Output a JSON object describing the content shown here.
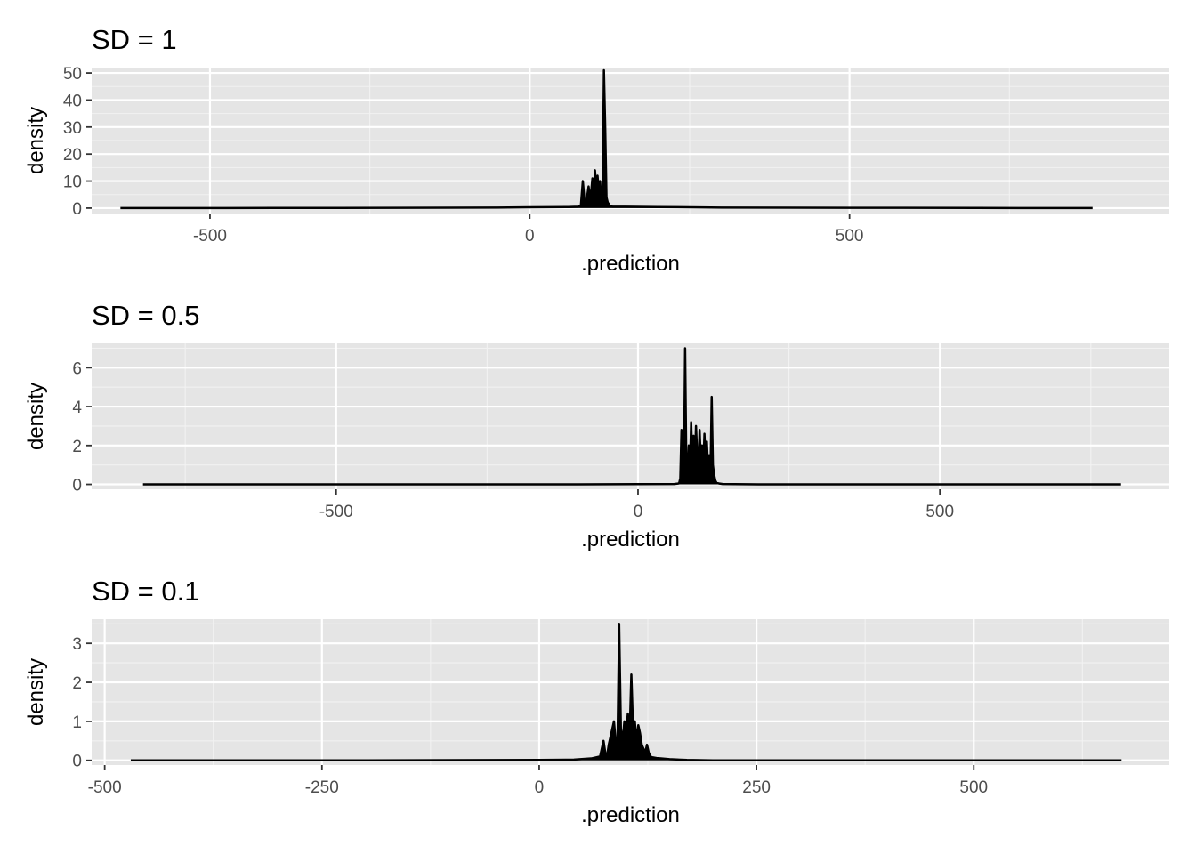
{
  "colors": {
    "panel_background": "#e5e5e5",
    "grid_major": "#ffffff",
    "grid_minor": "#f2f2f2",
    "density_line": "#000000",
    "tick_text": "#4d4d4d"
  },
  "chart_data": [
    {
      "type": "area",
      "title": "SD = 1",
      "xlabel": ".prediction",
      "ylabel": "density",
      "xlim": [
        -685,
        1000
      ],
      "ylim": [
        -2,
        52
      ],
      "x_ticks": [
        -500,
        0,
        500
      ],
      "x_tick_labels": [
        "-500",
        "0",
        "500"
      ],
      "y_ticks": [
        0,
        10,
        20,
        30,
        40,
        50
      ],
      "y_tick_labels": [
        "0",
        "10",
        "20",
        "30",
        "40",
        "50"
      ],
      "grid": true,
      "x": [
        -640,
        -400,
        -200,
        -50,
        0,
        60,
        75,
        80,
        83,
        86,
        89,
        92,
        95,
        98,
        100,
        102,
        104,
        106,
        108,
        110,
        112,
        114,
        116,
        118,
        120,
        122,
        124,
        125,
        127,
        130,
        150,
        200,
        250,
        300,
        500,
        700,
        880
      ],
      "y": [
        0,
        0.05,
        0.1,
        0.2,
        0.3,
        0.4,
        0.5,
        1,
        10,
        2,
        3,
        8,
        3,
        11,
        5,
        14,
        7,
        12,
        6,
        10,
        3,
        5,
        51,
        30,
        4,
        2,
        1.5,
        1,
        0.6,
        0.5,
        0.5,
        0.4,
        0.3,
        0.2,
        0.1,
        0.05,
        0
      ]
    },
    {
      "type": "area",
      "title": "SD = 0.5",
      "xlabel": ".prediction",
      "ylabel": "density",
      "xlim": [
        -905,
        880
      ],
      "ylim": [
        -0.25,
        7.25
      ],
      "x_ticks": [
        -500,
        0,
        500
      ],
      "x_tick_labels": [
        "-500",
        "0",
        "500"
      ],
      "y_ticks": [
        0,
        2,
        4,
        6
      ],
      "y_tick_labels": [
        "0",
        "2",
        "4",
        "6"
      ],
      "grid": true,
      "x": [
        -820,
        -400,
        -100,
        0,
        60,
        68,
        70,
        72,
        74,
        76,
        78,
        80,
        82,
        84,
        86,
        88,
        90,
        92,
        94,
        96,
        98,
        100,
        102,
        104,
        106,
        108,
        110,
        112,
        114,
        116,
        118,
        120,
        122,
        124,
        126,
        128,
        130,
        135,
        140,
        160,
        200,
        400,
        800
      ],
      "y": [
        0,
        0,
        0,
        0.01,
        0.02,
        0.05,
        0.3,
        2.8,
        1.5,
        0.5,
        7,
        1,
        0.5,
        2,
        0.8,
        3.2,
        1,
        2.5,
        0.8,
        3,
        1.5,
        0.8,
        2.8,
        1.2,
        2,
        0.8,
        2.6,
        1,
        2.2,
        0.8,
        1.5,
        0.5,
        4.5,
        1,
        0.5,
        0.2,
        0.08,
        0.04,
        0.02,
        0.01,
        0,
        0,
        0
      ]
    },
    {
      "type": "area",
      "title": "SD = 0.1",
      "xlabel": ".prediction",
      "ylabel": "density",
      "xlim": [
        -515,
        725
      ],
      "ylim": [
        -0.12,
        3.62
      ],
      "x_ticks": [
        -500,
        -250,
        0,
        250,
        500
      ],
      "x_tick_labels": [
        "-500",
        "-250",
        "0",
        "250",
        "500"
      ],
      "y_ticks": [
        0,
        1,
        2,
        3
      ],
      "y_tick_labels": [
        "0",
        "1",
        "2",
        "3"
      ],
      "grid": true,
      "x": [
        -470,
        -200,
        0,
        40,
        60,
        70,
        72,
        74,
        76,
        78,
        80,
        82,
        84,
        86,
        88,
        90,
        92,
        94,
        96,
        98,
        100,
        102,
        104,
        106,
        108,
        110,
        112,
        114,
        116,
        118,
        120,
        122,
        124,
        126,
        128,
        130,
        135,
        140,
        150,
        170,
        200,
        400,
        670
      ],
      "y": [
        0,
        0,
        0.01,
        0.02,
        0.05,
        0.1,
        0.3,
        0.5,
        0.2,
        0.1,
        0.4,
        0.6,
        0.8,
        1,
        0.5,
        0.3,
        3.5,
        0.8,
        0.5,
        1,
        0.7,
        1.2,
        0.6,
        2.2,
        0.8,
        1.0,
        0.5,
        0.9,
        0.7,
        0.4,
        0.3,
        0.2,
        0.4,
        0.2,
        0.1,
        0.08,
        0.06,
        0.05,
        0.03,
        0.01,
        0,
        0,
        0
      ]
    }
  ]
}
